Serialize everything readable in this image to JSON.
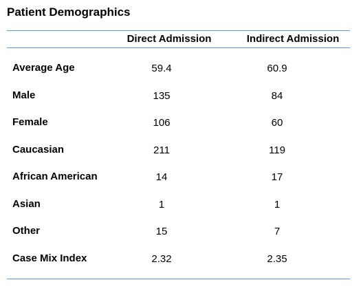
{
  "table": {
    "title": "Patient Demographics",
    "columns": [
      "Direct Admission",
      "Indirect Admission"
    ],
    "rows": [
      {
        "label": "Average Age",
        "direct": "59.4",
        "indirect": "60.9"
      },
      {
        "label": "Male",
        "direct": "135",
        "indirect": "84"
      },
      {
        "label": "Female",
        "direct": "106",
        "indirect": "60"
      },
      {
        "label": "Caucasian",
        "direct": "211",
        "indirect": "119"
      },
      {
        "label": "African American",
        "direct": "14",
        "indirect": "17"
      },
      {
        "label": "Asian",
        "direct": "1",
        "indirect": "1"
      },
      {
        "label": "Other",
        "direct": "15",
        "indirect": "7"
      },
      {
        "label": "Case Mix Index",
        "direct": "2.32",
        "indirect": "2.35"
      }
    ]
  },
  "colors": {
    "rule": "#5b9bd5",
    "text": "#000000",
    "background": "#ffffff"
  }
}
